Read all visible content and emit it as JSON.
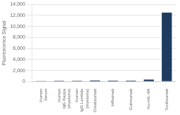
{
  "chart_data": {
    "type": "bar",
    "categories": [
      "Human\nSerum",
      "Human\nIgG Kappa\n(myeloma)",
      "Human\nIgG Lambda\n(myeloma)",
      "Omalizumab",
      "Infliximab",
      "Golimumab",
      "Hu-mIL-6R",
      "Tocilizumab"
    ],
    "values": [
      120,
      130,
      150,
      200,
      160,
      170,
      350,
      12500
    ],
    "color": "#1e3a5f",
    "ylabel": "Fluorescence Signal",
    "ylim": [
      0,
      14000
    ],
    "yticks": [
      0,
      {
        "value": 2000,
        "label": "2,000"
      },
      {
        "value": 4000,
        "label": "4,000"
      },
      {
        "value": 6000,
        "label": "6,000"
      },
      {
        "value": 8000,
        "label": "8,000"
      },
      {
        "value": 10000,
        "label": "10,000"
      },
      {
        "value": 12000,
        "label": "12,000"
      },
      {
        "value": 14000,
        "label": "14,000"
      }
    ],
    "grid": true
  }
}
